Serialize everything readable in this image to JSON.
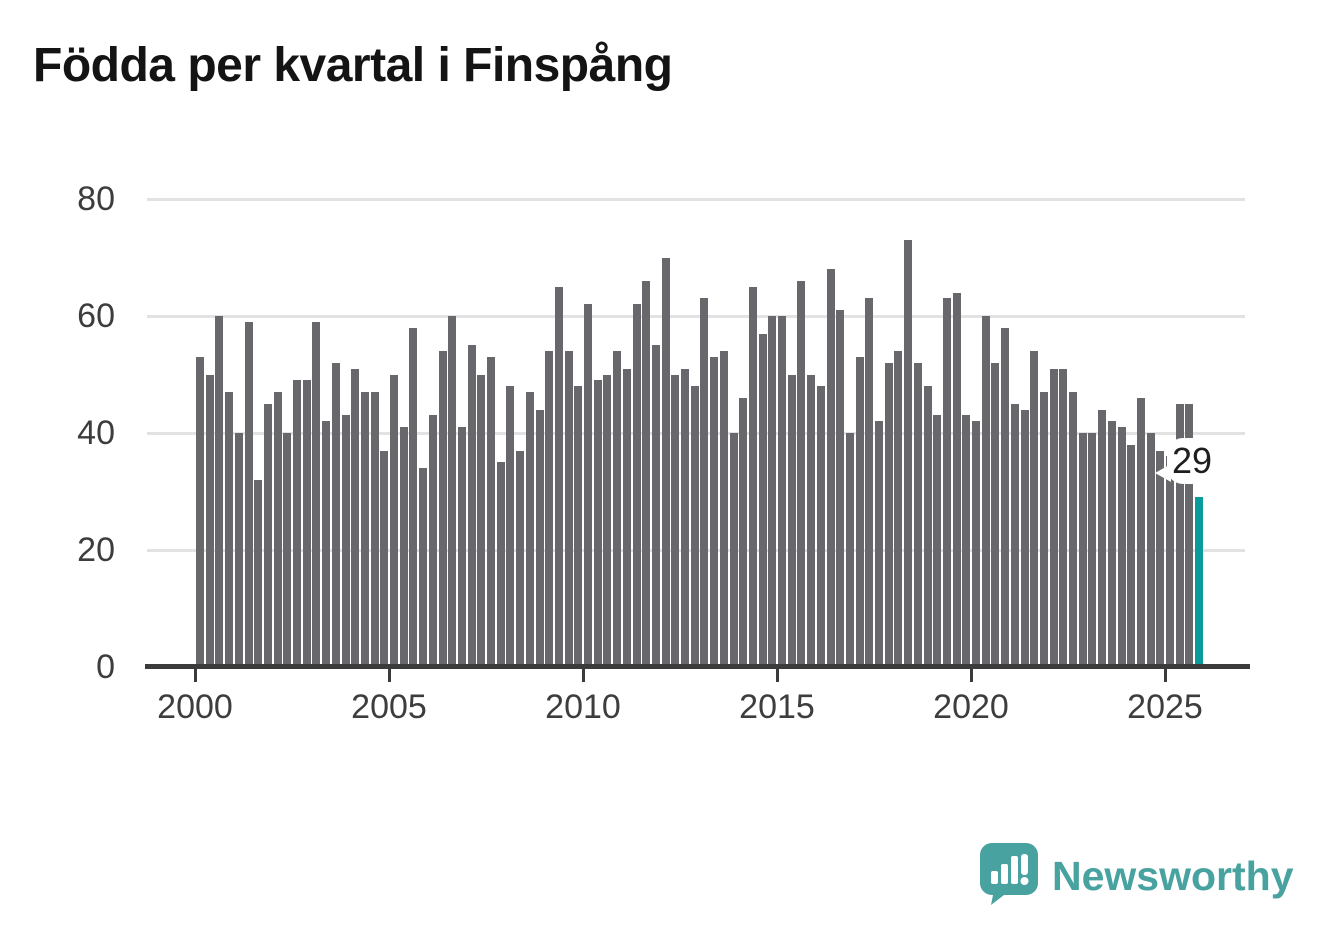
{
  "title": "Födda per kvartal i Finspång",
  "chart_data": {
    "type": "bar",
    "title": "Födda per kvartal i Finspång",
    "xlabel": "",
    "ylabel": "",
    "ylim": [
      0,
      80
    ],
    "y_ticks": [
      0,
      20,
      40,
      60,
      80
    ],
    "x_tick_labels": [
      "2000",
      "2005",
      "2010",
      "2015",
      "2020",
      "2025"
    ],
    "frequency": "quarterly",
    "grid": true,
    "legend_position": "none",
    "bar_color": "#68686c",
    "highlight_color": "#0b9b9a",
    "years": [
      {
        "year": 2000,
        "values": [
          53,
          50,
          60,
          47
        ]
      },
      {
        "year": 2001,
        "values": [
          40,
          59,
          32,
          45
        ]
      },
      {
        "year": 2002,
        "values": [
          47,
          40,
          49,
          49
        ]
      },
      {
        "year": 2003,
        "values": [
          59,
          42,
          52,
          43
        ]
      },
      {
        "year": 2004,
        "values": [
          51,
          47,
          47,
          37
        ]
      },
      {
        "year": 2005,
        "values": [
          50,
          41,
          58,
          34
        ]
      },
      {
        "year": 2006,
        "values": [
          43,
          54,
          60,
          41
        ]
      },
      {
        "year": 2007,
        "values": [
          55,
          50,
          53,
          35
        ]
      },
      {
        "year": 2008,
        "values": [
          48,
          37,
          47,
          44
        ]
      },
      {
        "year": 2009,
        "values": [
          54,
          65,
          54,
          48
        ]
      },
      {
        "year": 2010,
        "values": [
          62,
          49,
          50,
          54
        ]
      },
      {
        "year": 2011,
        "values": [
          51,
          62,
          66,
          55
        ]
      },
      {
        "year": 2012,
        "values": [
          70,
          50,
          51,
          48
        ]
      },
      {
        "year": 2013,
        "values": [
          63,
          53,
          54,
          40
        ]
      },
      {
        "year": 2014,
        "values": [
          46,
          65,
          57,
          60
        ]
      },
      {
        "year": 2015,
        "values": [
          60,
          50,
          66,
          50
        ]
      },
      {
        "year": 2016,
        "values": [
          48,
          68,
          61,
          40
        ]
      },
      {
        "year": 2017,
        "values": [
          53,
          63,
          42,
          52
        ]
      },
      {
        "year": 2018,
        "values": [
          54,
          73,
          52,
          48
        ]
      },
      {
        "year": 2019,
        "values": [
          43,
          63,
          64,
          43
        ]
      },
      {
        "year": 2020,
        "values": [
          42,
          60,
          52,
          58
        ]
      },
      {
        "year": 2021,
        "values": [
          45,
          44,
          54,
          47
        ]
      },
      {
        "year": 2022,
        "values": [
          51,
          51,
          47,
          40
        ]
      },
      {
        "year": 2023,
        "values": [
          40,
          44,
          42,
          41
        ]
      },
      {
        "year": 2024,
        "values": [
          38,
          46,
          40,
          37
        ]
      },
      {
        "year": 2025,
        "values": [
          36,
          45,
          45,
          29
        ]
      }
    ],
    "highlight": {
      "position": "last-bar",
      "value": 29,
      "label": "29"
    }
  },
  "branding": {
    "logo_text": "Newsworthy",
    "logo_color": "#47a2a0",
    "logo_icon": "speech-bubble-bar-chart-exclamation"
  }
}
